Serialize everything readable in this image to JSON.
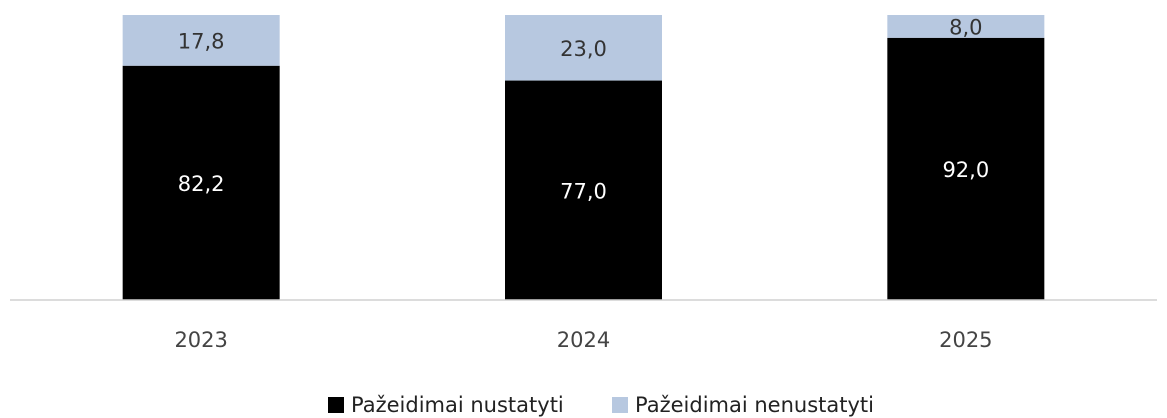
{
  "chart_data": {
    "type": "stacked-bar",
    "categories": [
      "2023",
      "2024",
      "2025"
    ],
    "series": [
      {
        "name": "Pažeidimai nustatyti",
        "color": "#000000",
        "values": [
          82.2,
          77.0,
          92.0
        ],
        "value_labels": [
          "82,2",
          "77,0",
          "92,0"
        ]
      },
      {
        "name": "Pažeidimai nenustatyti",
        "color": "#b7c8e0",
        "values": [
          17.8,
          23.0,
          8.0
        ],
        "value_labels": [
          "17,8",
          "23,0",
          "8,0"
        ]
      }
    ],
    "ylim": [
      0,
      100
    ],
    "legend": "bottom"
  }
}
